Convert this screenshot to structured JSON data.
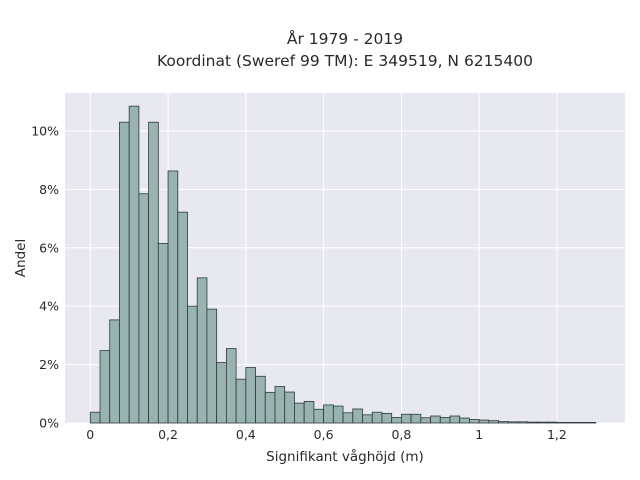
{
  "chart_data": {
    "type": "bar",
    "title": [
      "År 1979 - 2019",
      "Koordinat (Sweref 99 TM): E 349519, N 6215400"
    ],
    "xlabel": "Signifikant våghöjd (m)",
    "ylabel": "Andel",
    "xlim": [
      -0.065,
      1.375
    ],
    "ylim": [
      0,
      11.3
    ],
    "grid": true,
    "x_ticks": [
      0,
      0.2,
      0.4,
      0.6,
      0.8,
      1,
      1.2
    ],
    "x_tick_labels": [
      "0",
      "0,2",
      "0,4",
      "0,6",
      "0,8",
      "1",
      "1,2"
    ],
    "y_ticks": [
      0,
      2,
      4,
      6,
      8,
      10
    ],
    "y_tick_labels": [
      "0%",
      "2%",
      "4%",
      "6%",
      "8%",
      "10%"
    ],
    "bin_width": 0.025,
    "bin_starts": [
      0,
      0.025,
      0.05,
      0.075,
      0.1,
      0.125,
      0.15,
      0.175,
      0.2,
      0.225,
      0.25,
      0.275,
      0.3,
      0.325,
      0.35,
      0.375,
      0.4,
      0.425,
      0.45,
      0.475,
      0.5,
      0.525,
      0.55,
      0.575,
      0.6,
      0.625,
      0.65,
      0.675,
      0.7,
      0.725,
      0.75,
      0.775,
      0.8,
      0.825,
      0.85,
      0.875,
      0.9,
      0.925,
      0.95,
      0.975,
      1,
      1.025,
      1.05,
      1.075,
      1.1,
      1.125,
      1.15,
      1.175,
      1.2,
      1.225,
      1.25,
      1.275
    ],
    "values": [
      0.37,
      2.48,
      3.53,
      10.3,
      10.85,
      7.85,
      10.3,
      6.15,
      8.63,
      7.22,
      4.0,
      4.97,
      3.9,
      2.07,
      2.55,
      1.5,
      1.9,
      1.6,
      1.05,
      1.25,
      1.06,
      0.68,
      0.74,
      0.47,
      0.62,
      0.58,
      0.35,
      0.48,
      0.28,
      0.37,
      0.33,
      0.19,
      0.3,
      0.3,
      0.18,
      0.24,
      0.19,
      0.24,
      0.17,
      0.12,
      0.1,
      0.08,
      0.05,
      0.04,
      0.04,
      0.03,
      0.03,
      0.03,
      0.02,
      0.02,
      0.02,
      0.02
    ]
  }
}
